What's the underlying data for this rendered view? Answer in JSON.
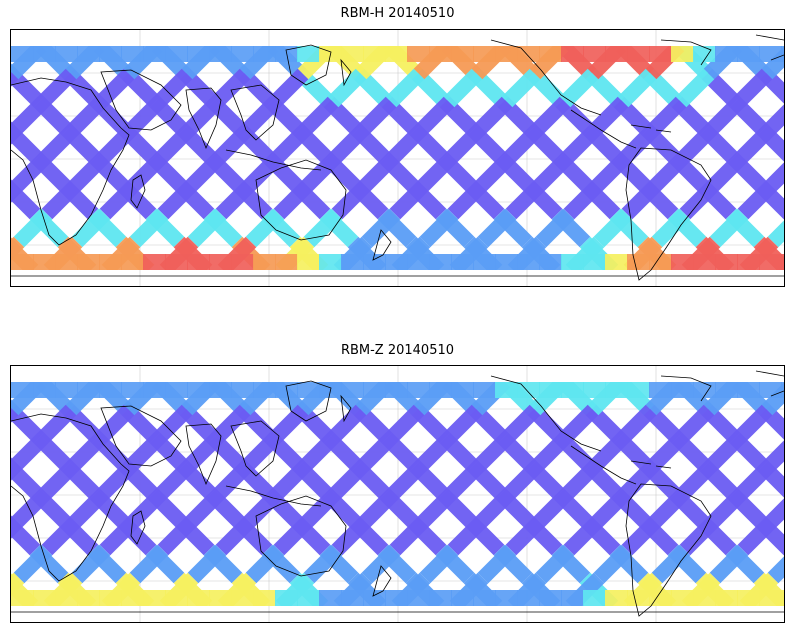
{
  "panels": [
    {
      "id": "h",
      "title": "RBM-H 20140510"
    },
    {
      "id": "z",
      "title": "RBM-Z 20140510"
    }
  ],
  "colors": {
    "low": "#6a5cf2",
    "low_mid": "#5a9df5",
    "mid": "#5ee6f0",
    "mid_high": "#a8f07a",
    "high": "#f5f060",
    "higher": "#f59a55",
    "highest": "#f0605a",
    "coastline": "#000000",
    "grid": "#cccccc"
  },
  "map": {
    "projection": "cylindrical",
    "gridlines": true,
    "center_longitude": 180
  }
}
